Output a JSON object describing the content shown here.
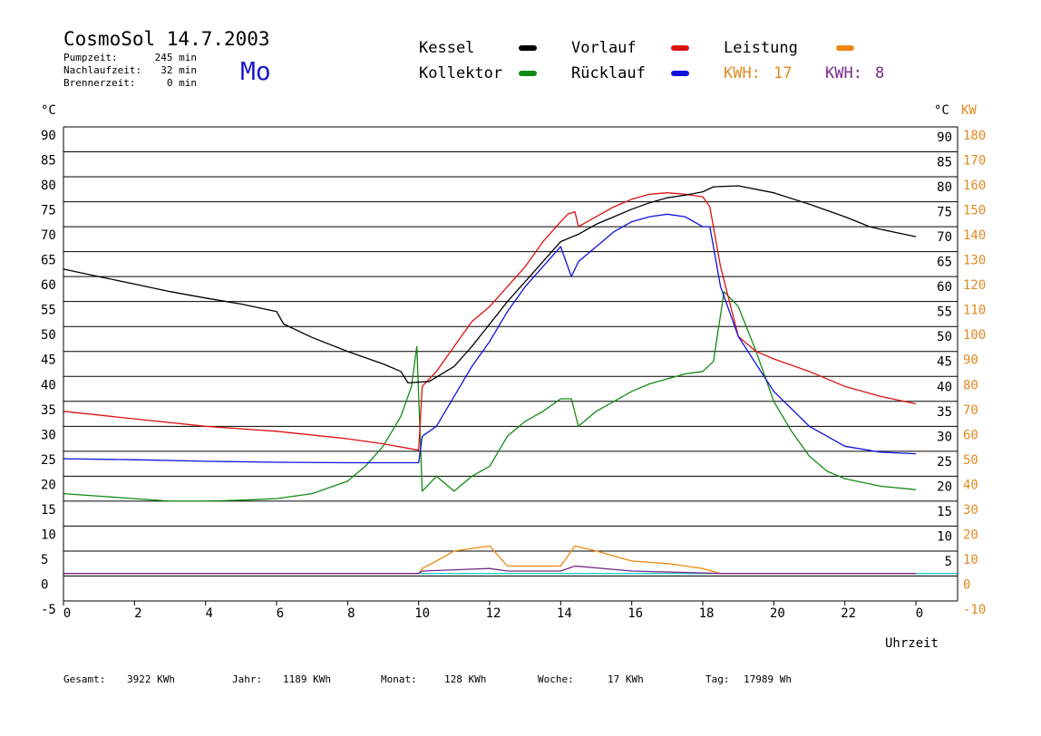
{
  "header": {
    "title": "CosmoSol 14.7.2003",
    "weekday": "Mo",
    "stats": [
      {
        "label": "Pumpzeit:",
        "value": "245 min"
      },
      {
        "label": "Nachlaufzeit:",
        "value": "32 min"
      },
      {
        "label": "Brennerzeit:",
        "value": "0 min"
      }
    ]
  },
  "legend": {
    "items": [
      {
        "label": "Kessel",
        "color": "#000000"
      },
      {
        "label": "Vorlauf",
        "color": "#dd1111"
      },
      {
        "label": "Leistung",
        "color": "#ee8811"
      },
      {
        "label": "Kollektor",
        "color": "#138a13"
      },
      {
        "label": "Rücklauf",
        "color": "#1111dd"
      }
    ],
    "kwh": [
      {
        "label": "KWH:",
        "value": "17",
        "color": "#e08a20"
      },
      {
        "label": "KWH:",
        "value": "8",
        "color": "#7a2a8a"
      }
    ]
  },
  "axes": {
    "left_unit": "°C",
    "right_unit_c": "°C",
    "right_unit_kw": "KW",
    "xlabel": "Uhrzeit"
  },
  "footer": [
    {
      "label": "Gesamt:",
      "value": "3922 KWh"
    },
    {
      "label": "Jahr:",
      "value": "1189 KWh"
    },
    {
      "label": "Monat:",
      "value": "128 KWh"
    },
    {
      "label": "Woche:",
      "value": "17 KWh"
    },
    {
      "label": "Tag:",
      "value": "17989 Wh"
    }
  ],
  "chart_data": {
    "type": "line",
    "xlabel": "Uhrzeit",
    "ylabel": "°C",
    "xlim": [
      0,
      24
    ],
    "ylim": [
      -5,
      90
    ],
    "x_ticks": [
      "0",
      "2",
      "4",
      "6",
      "8",
      "10",
      "12",
      "14",
      "16",
      "18",
      "20",
      "22",
      "0"
    ],
    "y_ticks_left": [
      "90",
      "85",
      "80",
      "75",
      "70",
      "65",
      "60",
      "55",
      "50",
      "45",
      "40",
      "35",
      "30",
      "25",
      "20",
      "15",
      "10",
      "5",
      "0",
      "-5"
    ],
    "y_ticks_right_c": [
      "90",
      "85",
      "80",
      "75",
      "70",
      "65",
      "60",
      "55",
      "50",
      "45",
      "40",
      "35",
      "30",
      "25",
      "20",
      "15",
      "10",
      "5"
    ],
    "y_ticks_right_kw": [
      "180",
      "170",
      "160",
      "150",
      "140",
      "130",
      "120",
      "110",
      "100",
      "90",
      "80",
      "70",
      "60",
      "50",
      "40",
      "30",
      "20",
      "10",
      "0",
      "-10"
    ],
    "grid": true,
    "series": [
      {
        "name": "Kessel",
        "color": "#000000",
        "points": [
          [
            0,
            61.5
          ],
          [
            1,
            60
          ],
          [
            2,
            58.5
          ],
          [
            3,
            57
          ],
          [
            4,
            55.7
          ],
          [
            5,
            54.5
          ],
          [
            6,
            53
          ],
          [
            6.2,
            50.5
          ],
          [
            7,
            47.8
          ],
          [
            8,
            45
          ],
          [
            9,
            42.5
          ],
          [
            9.5,
            41
          ],
          [
            9.7,
            38.7
          ],
          [
            10.3,
            39
          ],
          [
            11,
            42
          ],
          [
            11.5,
            46
          ],
          [
            12,
            50.5
          ],
          [
            12.5,
            55
          ],
          [
            13,
            59
          ],
          [
            13.5,
            63
          ],
          [
            14,
            67
          ],
          [
            14.5,
            68.5
          ],
          [
            15,
            70.5
          ],
          [
            15.5,
            72
          ],
          [
            16,
            73.5
          ],
          [
            16.5,
            74.8
          ],
          [
            17,
            75.8
          ],
          [
            17.5,
            76.3
          ],
          [
            18,
            77
          ],
          [
            18.3,
            78
          ],
          [
            19,
            78.2
          ],
          [
            20,
            76.8
          ],
          [
            21,
            74.5
          ],
          [
            22,
            72
          ],
          [
            22.7,
            70
          ],
          [
            23,
            69.5
          ],
          [
            24,
            68
          ]
        ]
      },
      {
        "name": "Vorlauf",
        "color": "#dd1111",
        "points": [
          [
            0,
            33
          ],
          [
            2,
            31.5
          ],
          [
            4,
            30
          ],
          [
            6,
            29
          ],
          [
            8,
            27.5
          ],
          [
            9,
            26.5
          ],
          [
            10,
            25.2
          ],
          [
            10.1,
            38
          ],
          [
            10.5,
            41
          ],
          [
            11,
            46
          ],
          [
            11.5,
            51
          ],
          [
            12,
            54
          ],
          [
            12.5,
            58
          ],
          [
            13,
            62
          ],
          [
            13.5,
            67
          ],
          [
            14,
            71
          ],
          [
            14.2,
            72.5
          ],
          [
            14.4,
            73
          ],
          [
            14.5,
            70
          ],
          [
            15,
            72
          ],
          [
            15.5,
            74
          ],
          [
            16,
            75.5
          ],
          [
            16.5,
            76.5
          ],
          [
            17,
            76.8
          ],
          [
            17.5,
            76.5
          ],
          [
            18,
            76
          ],
          [
            18.2,
            74
          ],
          [
            18.5,
            62
          ],
          [
            19,
            48
          ],
          [
            19.5,
            45
          ],
          [
            20,
            43.5
          ],
          [
            21,
            41
          ],
          [
            22,
            38
          ],
          [
            23,
            36
          ],
          [
            24,
            34.5
          ]
        ]
      },
      {
        "name": "Rücklauf",
        "color": "#1111dd",
        "points": [
          [
            0,
            23.5
          ],
          [
            2,
            23.3
          ],
          [
            4,
            23
          ],
          [
            6,
            22.8
          ],
          [
            8,
            22.7
          ],
          [
            10,
            22.7
          ],
          [
            10.1,
            28
          ],
          [
            10.5,
            30
          ],
          [
            11,
            36
          ],
          [
            11.5,
            42
          ],
          [
            12,
            47
          ],
          [
            12.5,
            53
          ],
          [
            13,
            58
          ],
          [
            13.5,
            62
          ],
          [
            14,
            66
          ],
          [
            14.3,
            60
          ],
          [
            14.5,
            63
          ],
          [
            15,
            66
          ],
          [
            15.5,
            69
          ],
          [
            16,
            71
          ],
          [
            16.5,
            72
          ],
          [
            17,
            72.5
          ],
          [
            17.5,
            72
          ],
          [
            18,
            70
          ],
          [
            18.2,
            70
          ],
          [
            18.5,
            58
          ],
          [
            19,
            48
          ],
          [
            20,
            37
          ],
          [
            21,
            30
          ],
          [
            22,
            26
          ],
          [
            23,
            24.8
          ],
          [
            24,
            24.5
          ]
        ]
      },
      {
        "name": "Kollektor",
        "color": "#138a13",
        "points": [
          [
            0,
            16.5
          ],
          [
            1,
            16
          ],
          [
            2,
            15.5
          ],
          [
            3,
            15
          ],
          [
            4,
            15
          ],
          [
            5,
            15.2
          ],
          [
            6,
            15.5
          ],
          [
            7,
            16.5
          ],
          [
            8,
            19
          ],
          [
            8.5,
            22
          ],
          [
            9,
            26
          ],
          [
            9.5,
            32
          ],
          [
            9.8,
            38
          ],
          [
            9.95,
            46
          ],
          [
            10.1,
            17
          ],
          [
            10.5,
            20
          ],
          [
            11,
            17
          ],
          [
            11.5,
            20
          ],
          [
            12,
            22
          ],
          [
            12.5,
            28
          ],
          [
            13,
            31
          ],
          [
            13.5,
            33
          ],
          [
            14,
            35.5
          ],
          [
            14.3,
            35.5
          ],
          [
            14.5,
            30
          ],
          [
            15,
            33
          ],
          [
            15.5,
            35
          ],
          [
            16,
            37
          ],
          [
            16.5,
            38.5
          ],
          [
            17,
            39.5
          ],
          [
            17.5,
            40.5
          ],
          [
            18,
            41
          ],
          [
            18.3,
            43
          ],
          [
            18.6,
            57
          ],
          [
            19,
            54
          ],
          [
            19.5,
            45
          ],
          [
            20,
            35
          ],
          [
            20.5,
            29
          ],
          [
            21,
            24
          ],
          [
            21.5,
            21
          ],
          [
            22,
            19.5
          ],
          [
            23,
            18
          ],
          [
            24,
            17.3
          ]
        ]
      },
      {
        "name": "Leistung",
        "color": "#ee8811",
        "points": [
          [
            0,
            0.5
          ],
          [
            10,
            0.5
          ],
          [
            10.1,
            1.5
          ],
          [
            10.5,
            3
          ],
          [
            11,
            5
          ],
          [
            12,
            6
          ],
          [
            12.5,
            2
          ],
          [
            13,
            2
          ],
          [
            14,
            2
          ],
          [
            14.4,
            6
          ],
          [
            15,
            5
          ],
          [
            16,
            3
          ],
          [
            17,
            2.5
          ],
          [
            18,
            1.5
          ],
          [
            18.5,
            0.5
          ],
          [
            24,
            0.5
          ]
        ]
      },
      {
        "name": "KWH",
        "color": "#7a2a8a",
        "points": [
          [
            0,
            0.5
          ],
          [
            10,
            0.5
          ],
          [
            10.1,
            1
          ],
          [
            12,
            1.5
          ],
          [
            12.5,
            1
          ],
          [
            14,
            1
          ],
          [
            14.4,
            2
          ],
          [
            16,
            1
          ],
          [
            18.5,
            0.5
          ],
          [
            24,
            0.5
          ]
        ]
      }
    ],
    "baseline": {
      "color": "#33cccc",
      "value": 0.5
    }
  }
}
